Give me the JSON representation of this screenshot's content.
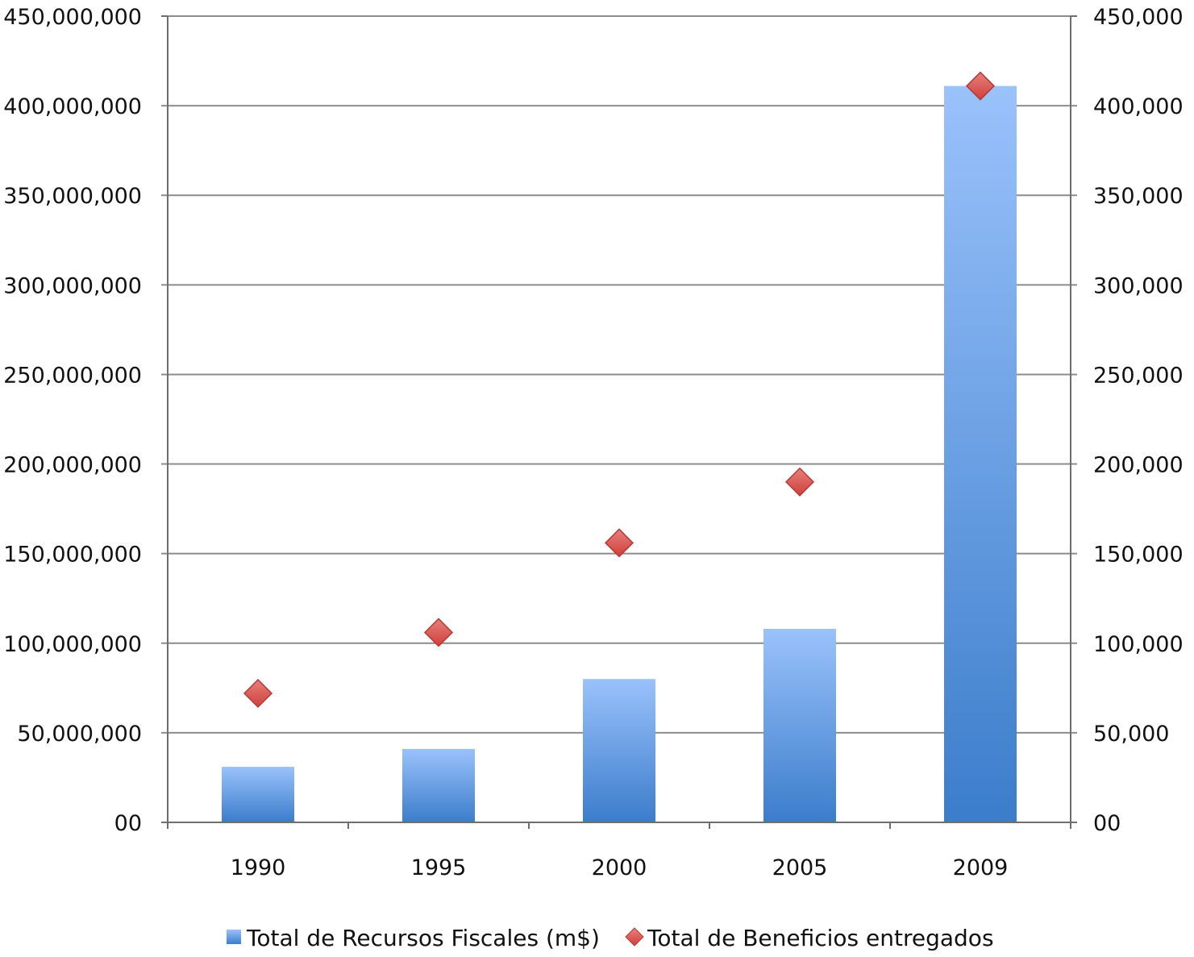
{
  "chart_data": {
    "type": "bar",
    "categories": [
      "1990",
      "1995",
      "2000",
      "2005",
      "2009"
    ],
    "series": [
      {
        "name": "Total de Recursos Fiscales (m$)",
        "kind": "bar",
        "axis": "left",
        "values": [
          31000000,
          41000000,
          80000000,
          108000000,
          411000000
        ]
      },
      {
        "name": "Total de Beneficios entregados",
        "kind": "scatter",
        "marker": "diamond",
        "axis": "right",
        "values": [
          72000,
          106000,
          156000,
          190000,
          411000
        ]
      }
    ],
    "y_left": {
      "ylim": [
        0,
        450000000
      ],
      "ticks": [
        0,
        50000000,
        100000000,
        150000000,
        200000000,
        250000000,
        300000000,
        350000000,
        400000000,
        450000000
      ],
      "tick_labels": [
        "00",
        "50,000,000",
        "100,000,000",
        "150,000,000",
        "200,000,000",
        "250,000,000",
        "300,000,000",
        "350,000,000",
        "400,000,000",
        "450,000,000"
      ]
    },
    "y_right": {
      "ylim": [
        0,
        450000
      ],
      "ticks": [
        0,
        50000,
        100000,
        150000,
        200000,
        250000,
        300000,
        350000,
        400000,
        450000
      ],
      "tick_labels": [
        "00",
        "50,000",
        "100,000",
        "150,000",
        "200,000",
        "250,000",
        "300,000",
        "350,000",
        "400,000",
        "450,000"
      ]
    },
    "grid": true,
    "legend_position": "bottom-center",
    "colors": {
      "bar_top": "#9ac2fb",
      "bar_bottom": "#3b7dcb",
      "marker_fill": "#d9534f",
      "marker_stroke": "#b33a37",
      "grid": "#8c8c8c",
      "axis": "#6e6e6e"
    }
  }
}
